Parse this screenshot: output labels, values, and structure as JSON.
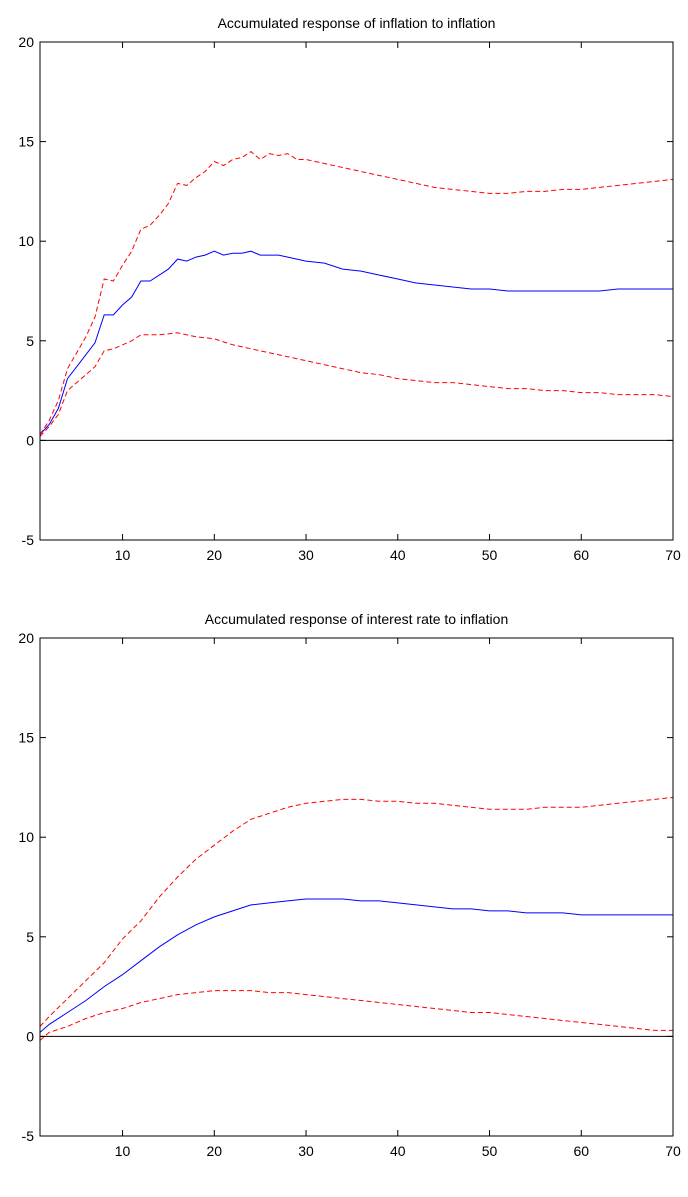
{
  "chart_data": [
    {
      "type": "line",
      "title": "Accumulated response of inflation to inflation",
      "xlabel": "",
      "ylabel": "",
      "xlim": [
        1,
        70
      ],
      "ylim": [
        -5,
        20
      ],
      "x_ticks": [
        10,
        20,
        30,
        40,
        50,
        60,
        70
      ],
      "y_ticks": [
        -5,
        0,
        5,
        10,
        15,
        20
      ],
      "grid": false,
      "zero_line": true,
      "series": [
        {
          "color": "#0000ff",
          "style": "solid",
          "x": [
            1,
            2,
            3,
            4,
            5,
            6,
            7,
            8,
            9,
            10,
            11,
            12,
            13,
            14,
            15,
            16,
            17,
            18,
            19,
            20,
            21,
            22,
            23,
            24,
            25,
            26,
            27,
            28,
            29,
            30,
            32,
            34,
            36,
            38,
            40,
            42,
            44,
            46,
            48,
            50,
            52,
            54,
            56,
            58,
            60,
            62,
            64,
            66,
            68,
            70
          ],
          "y": [
            0.3,
            0.8,
            1.6,
            3.1,
            3.7,
            4.3,
            4.9,
            6.3,
            6.3,
            6.8,
            7.2,
            8.0,
            8.0,
            8.3,
            8.6,
            9.1,
            9.0,
            9.2,
            9.3,
            9.5,
            9.3,
            9.4,
            9.4,
            9.5,
            9.3,
            9.3,
            9.3,
            9.2,
            9.1,
            9.0,
            8.9,
            8.6,
            8.5,
            8.3,
            8.1,
            7.9,
            7.8,
            7.7,
            7.6,
            7.6,
            7.5,
            7.5,
            7.5,
            7.5,
            7.5,
            7.5,
            7.6,
            7.6,
            7.6,
            7.6
          ]
        },
        {
          "color": "#ff0000",
          "style": "dashed",
          "x": [
            1,
            2,
            3,
            4,
            5,
            6,
            7,
            8,
            9,
            10,
            11,
            12,
            13,
            14,
            15,
            16,
            17,
            18,
            19,
            20,
            21,
            22,
            23,
            24,
            25,
            26,
            27,
            28,
            29,
            30,
            32,
            34,
            36,
            38,
            40,
            42,
            44,
            46,
            48,
            50,
            52,
            54,
            56,
            58,
            60,
            62,
            64,
            66,
            68,
            70
          ],
          "y": [
            0.3,
            1.0,
            2.0,
            3.6,
            4.4,
            5.2,
            6.2,
            8.1,
            8.0,
            8.8,
            9.5,
            10.6,
            10.8,
            11.3,
            11.9,
            12.9,
            12.8,
            13.2,
            13.5,
            14.0,
            13.8,
            14.1,
            14.2,
            14.5,
            14.1,
            14.4,
            14.3,
            14.4,
            14.1,
            14.1,
            13.9,
            13.7,
            13.5,
            13.3,
            13.1,
            12.9,
            12.7,
            12.6,
            12.5,
            12.4,
            12.4,
            12.5,
            12.5,
            12.6,
            12.6,
            12.7,
            12.8,
            12.9,
            13.0,
            13.1
          ]
        },
        {
          "color": "#ff0000",
          "style": "dashed",
          "x": [
            1,
            2,
            3,
            4,
            5,
            6,
            7,
            8,
            9,
            10,
            11,
            12,
            14,
            16,
            18,
            20,
            22,
            24,
            26,
            28,
            30,
            32,
            34,
            36,
            38,
            40,
            42,
            44,
            46,
            48,
            50,
            52,
            54,
            56,
            58,
            60,
            62,
            64,
            66,
            68,
            70
          ],
          "y": [
            0.2,
            0.7,
            1.3,
            2.5,
            2.9,
            3.3,
            3.7,
            4.5,
            4.6,
            4.8,
            5.0,
            5.3,
            5.3,
            5.4,
            5.2,
            5.1,
            4.8,
            4.6,
            4.4,
            4.2,
            4.0,
            3.8,
            3.6,
            3.4,
            3.3,
            3.1,
            3.0,
            2.9,
            2.9,
            2.8,
            2.7,
            2.6,
            2.6,
            2.5,
            2.5,
            2.4,
            2.4,
            2.3,
            2.3,
            2.3,
            2.2
          ]
        }
      ]
    },
    {
      "type": "line",
      "title": "Accumulated response of interest rate to inflation",
      "xlabel": "",
      "ylabel": "",
      "xlim": [
        1,
        70
      ],
      "ylim": [
        -5,
        20
      ],
      "x_ticks": [
        10,
        20,
        30,
        40,
        50,
        60,
        70
      ],
      "y_ticks": [
        -5,
        0,
        5,
        10,
        15,
        20
      ],
      "grid": false,
      "zero_line": true,
      "series": [
        {
          "color": "#0000ff",
          "style": "solid",
          "x": [
            1,
            2,
            4,
            6,
            8,
            10,
            12,
            14,
            16,
            18,
            20,
            22,
            24,
            26,
            28,
            30,
            32,
            34,
            36,
            38,
            40,
            42,
            44,
            46,
            48,
            50,
            52,
            54,
            56,
            58,
            60,
            62,
            64,
            66,
            68,
            70
          ],
          "y": [
            0.2,
            0.6,
            1.2,
            1.8,
            2.5,
            3.1,
            3.8,
            4.5,
            5.1,
            5.6,
            6.0,
            6.3,
            6.6,
            6.7,
            6.8,
            6.9,
            6.9,
            6.9,
            6.8,
            6.8,
            6.7,
            6.6,
            6.5,
            6.4,
            6.4,
            6.3,
            6.3,
            6.2,
            6.2,
            6.2,
            6.1,
            6.1,
            6.1,
            6.1,
            6.1,
            6.1
          ]
        },
        {
          "color": "#ff0000",
          "style": "dashed",
          "x": [
            1,
            2,
            4,
            6,
            8,
            10,
            12,
            14,
            16,
            18,
            20,
            22,
            24,
            26,
            28,
            30,
            32,
            34,
            36,
            38,
            40,
            42,
            44,
            46,
            48,
            50,
            52,
            54,
            56,
            58,
            60,
            62,
            64,
            66,
            68,
            70
          ],
          "y": [
            0.5,
            1.0,
            1.9,
            2.8,
            3.7,
            4.9,
            5.8,
            7.0,
            8.0,
            8.9,
            9.6,
            10.3,
            10.9,
            11.2,
            11.5,
            11.7,
            11.8,
            11.9,
            11.9,
            11.8,
            11.8,
            11.7,
            11.7,
            11.6,
            11.5,
            11.4,
            11.4,
            11.4,
            11.5,
            11.5,
            11.5,
            11.6,
            11.7,
            11.8,
            11.9,
            12.0
          ]
        },
        {
          "color": "#ff0000",
          "style": "dashed",
          "x": [
            1,
            2,
            4,
            6,
            8,
            10,
            12,
            14,
            16,
            18,
            20,
            22,
            24,
            26,
            28,
            30,
            32,
            34,
            36,
            38,
            40,
            42,
            44,
            46,
            48,
            50,
            52,
            54,
            56,
            58,
            60,
            62,
            64,
            66,
            68,
            70
          ],
          "y": [
            -0.2,
            0.2,
            0.5,
            0.9,
            1.2,
            1.4,
            1.7,
            1.9,
            2.1,
            2.2,
            2.3,
            2.3,
            2.3,
            2.2,
            2.2,
            2.1,
            2.0,
            1.9,
            1.8,
            1.7,
            1.6,
            1.5,
            1.4,
            1.3,
            1.2,
            1.2,
            1.1,
            1.0,
            0.9,
            0.8,
            0.7,
            0.6,
            0.5,
            0.4,
            0.3,
            0.3
          ]
        }
      ]
    }
  ]
}
